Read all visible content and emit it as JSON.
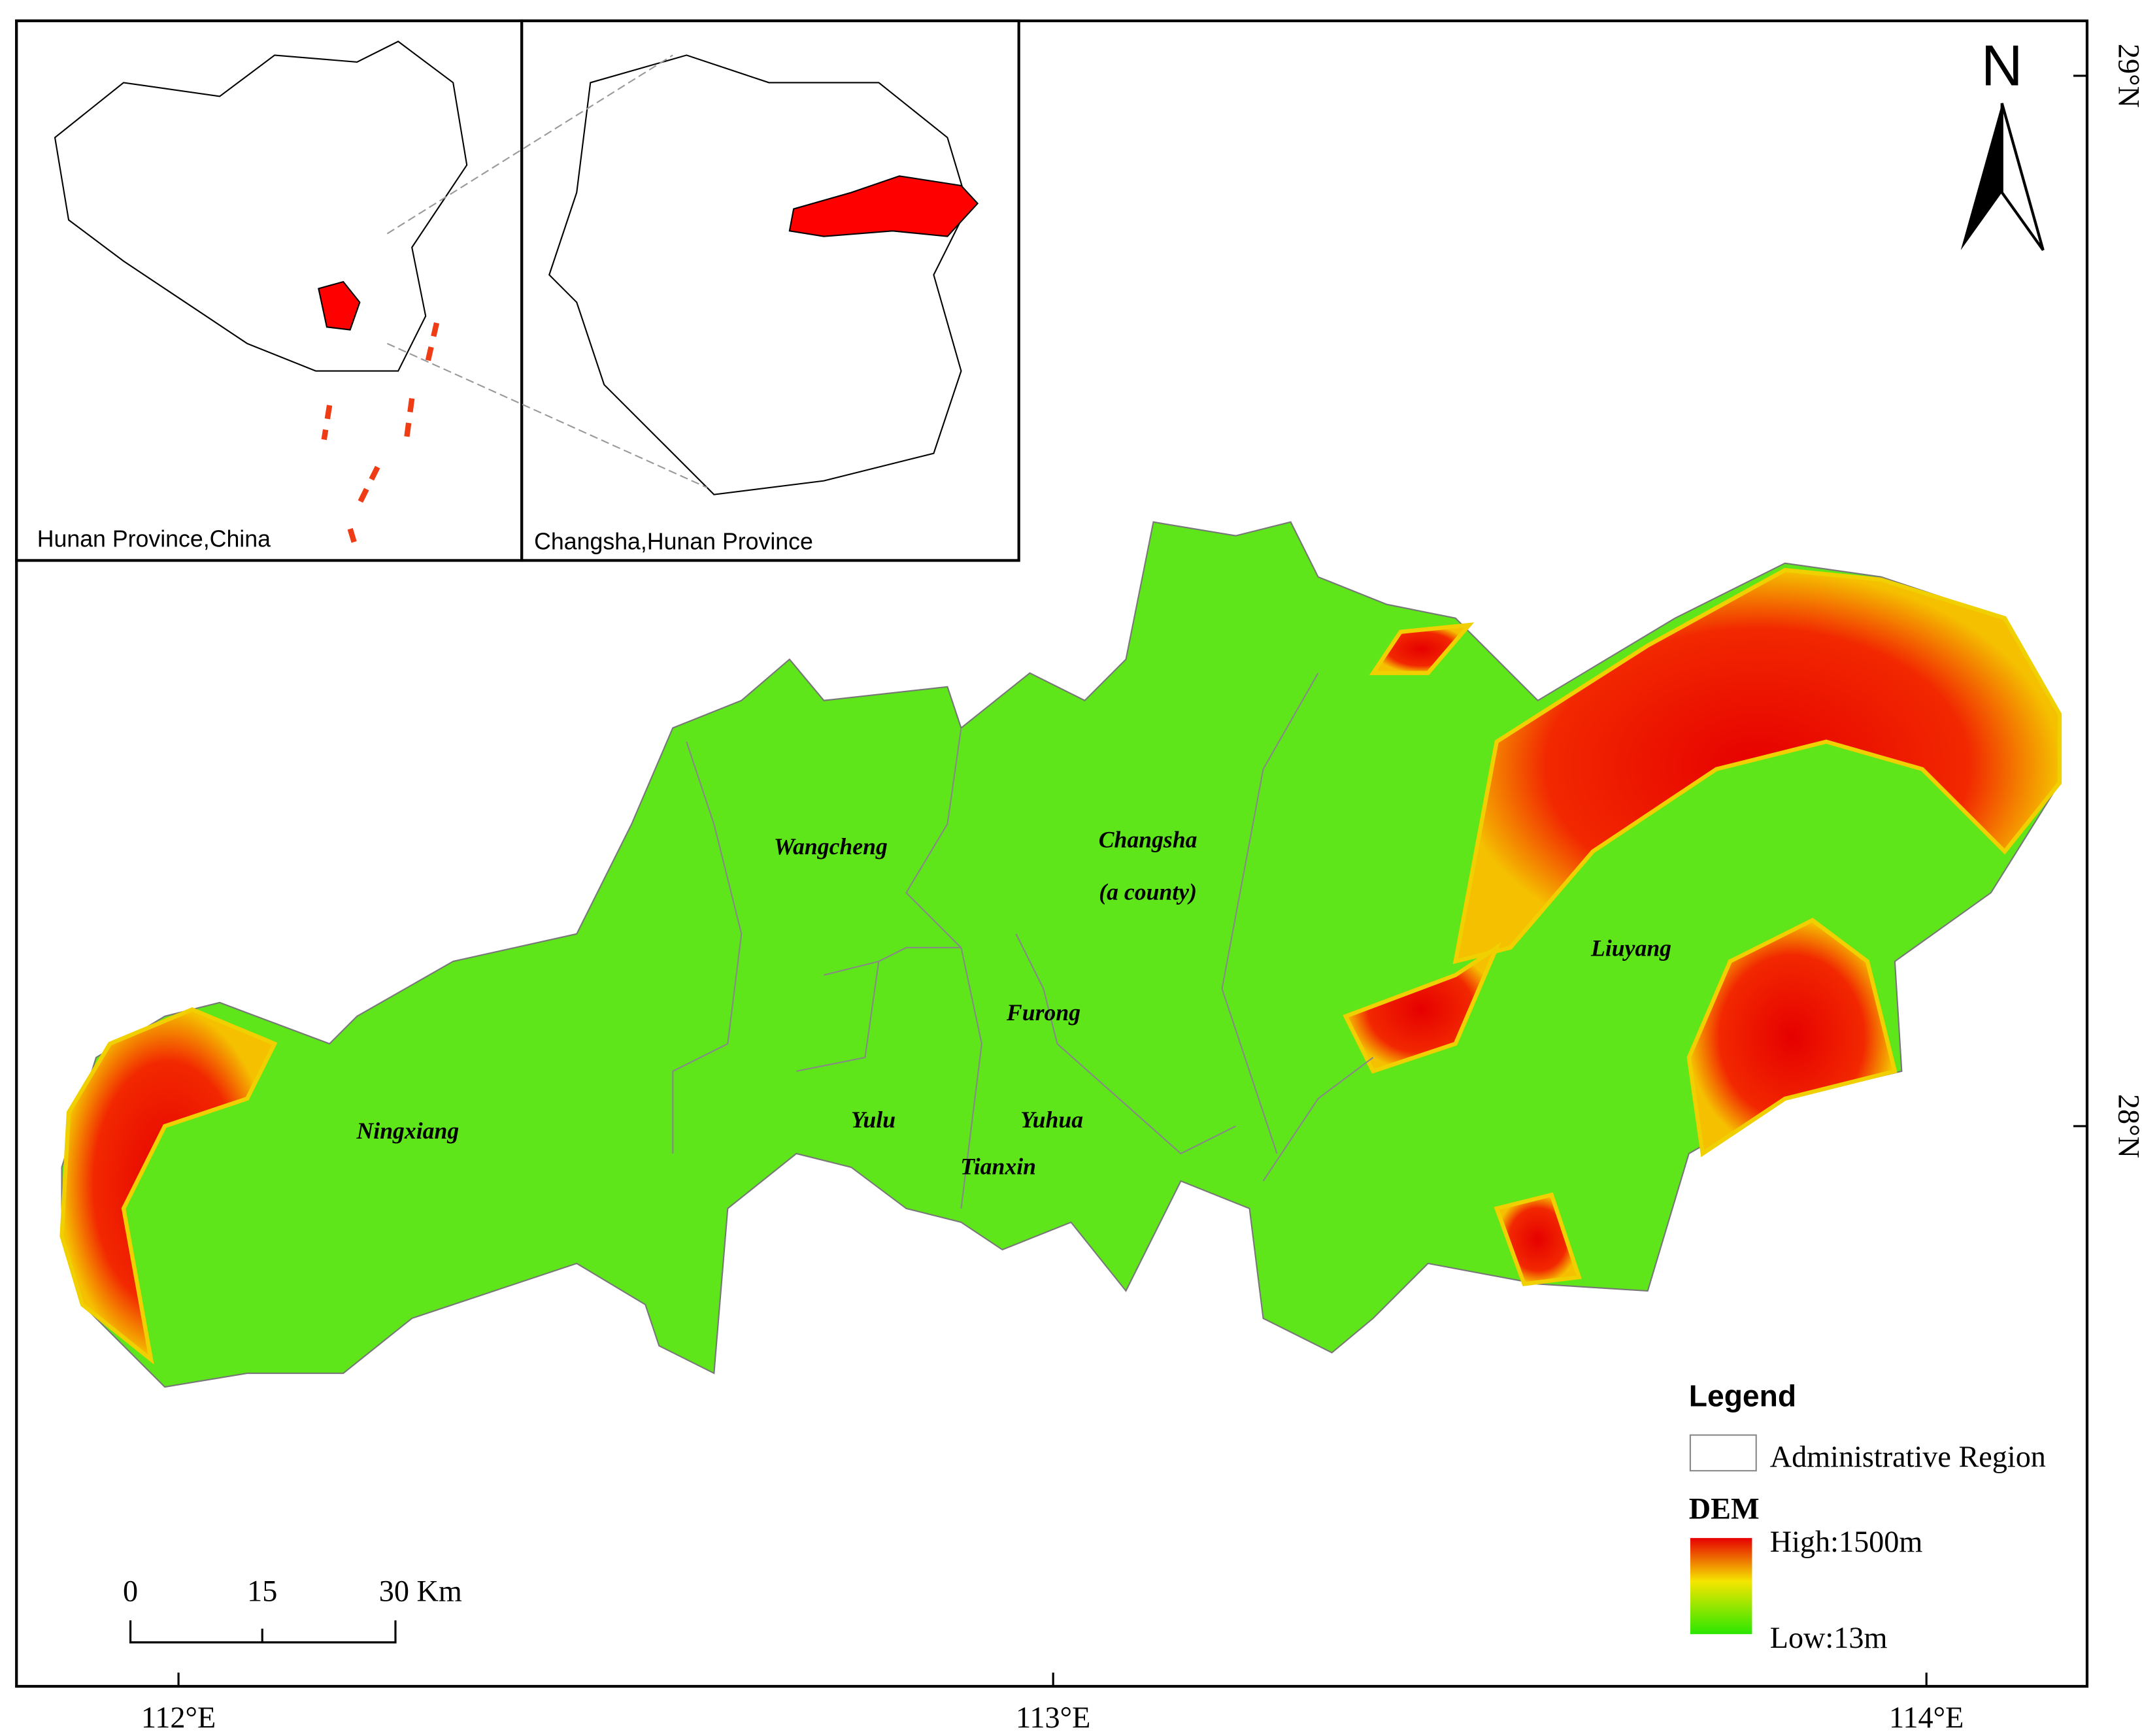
{
  "insets": [
    {
      "label": "Hunan Province,China"
    },
    {
      "label": "Changsha,Hunan Province"
    }
  ],
  "north_arrow": "N",
  "regions": [
    {
      "name": "Wangcheng"
    },
    {
      "name": "Changsha",
      "note": "(a county)"
    },
    {
      "name": "Liuyang"
    },
    {
      "name": "Furong"
    },
    {
      "name": "Ningxiang"
    },
    {
      "name": "Yulu"
    },
    {
      "name": "Yuhua"
    },
    {
      "name": "Tianxin"
    }
  ],
  "legend": {
    "title": "Legend",
    "admin": "Administrative Region",
    "dem_title": "DEM",
    "high": "High:1500m",
    "low": "Low:13m"
  },
  "scale_bar": {
    "ticks": [
      "0",
      "15",
      "30 Km"
    ]
  },
  "axes": {
    "x": [
      "112°E",
      "113°E",
      "114°E"
    ],
    "y": [
      "29°N",
      "28°N"
    ]
  }
}
